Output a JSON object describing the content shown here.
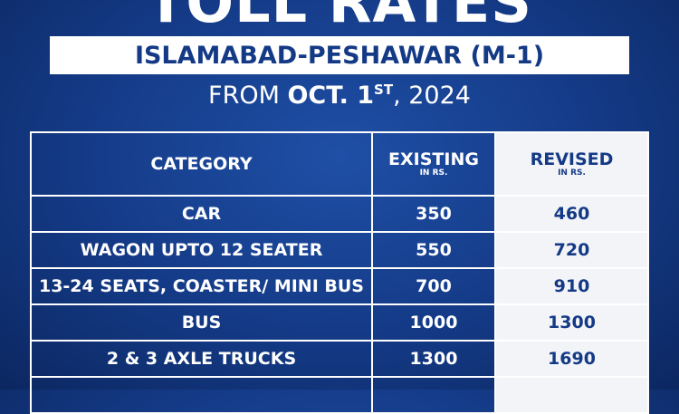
{
  "header": {
    "title": "TOLL RATES",
    "route": "ISLAMABAD-PESHAWAR (M-1)",
    "date": {
      "prefix": "FROM",
      "bold": "OCT. 1",
      "superscript": "ST",
      "suffix": ", 2024"
    }
  },
  "table": {
    "columns": [
      {
        "label": "CATEGORY"
      },
      {
        "label": "EXISTING",
        "unit": "IN RS."
      },
      {
        "label": "REVISED",
        "unit": "IN RS."
      }
    ],
    "rows": [
      [
        "CAR",
        350,
        460
      ],
      [
        "WAGON UPTO 12 SEATER",
        550,
        720
      ],
      [
        "13-24 SEATS, COASTER/ MINI BUS",
        700,
        910
      ],
      [
        "BUS",
        1000,
        1300
      ],
      [
        "2 & 3 AXLE TRUCKS",
        1300,
        1690
      ]
    ]
  }
}
